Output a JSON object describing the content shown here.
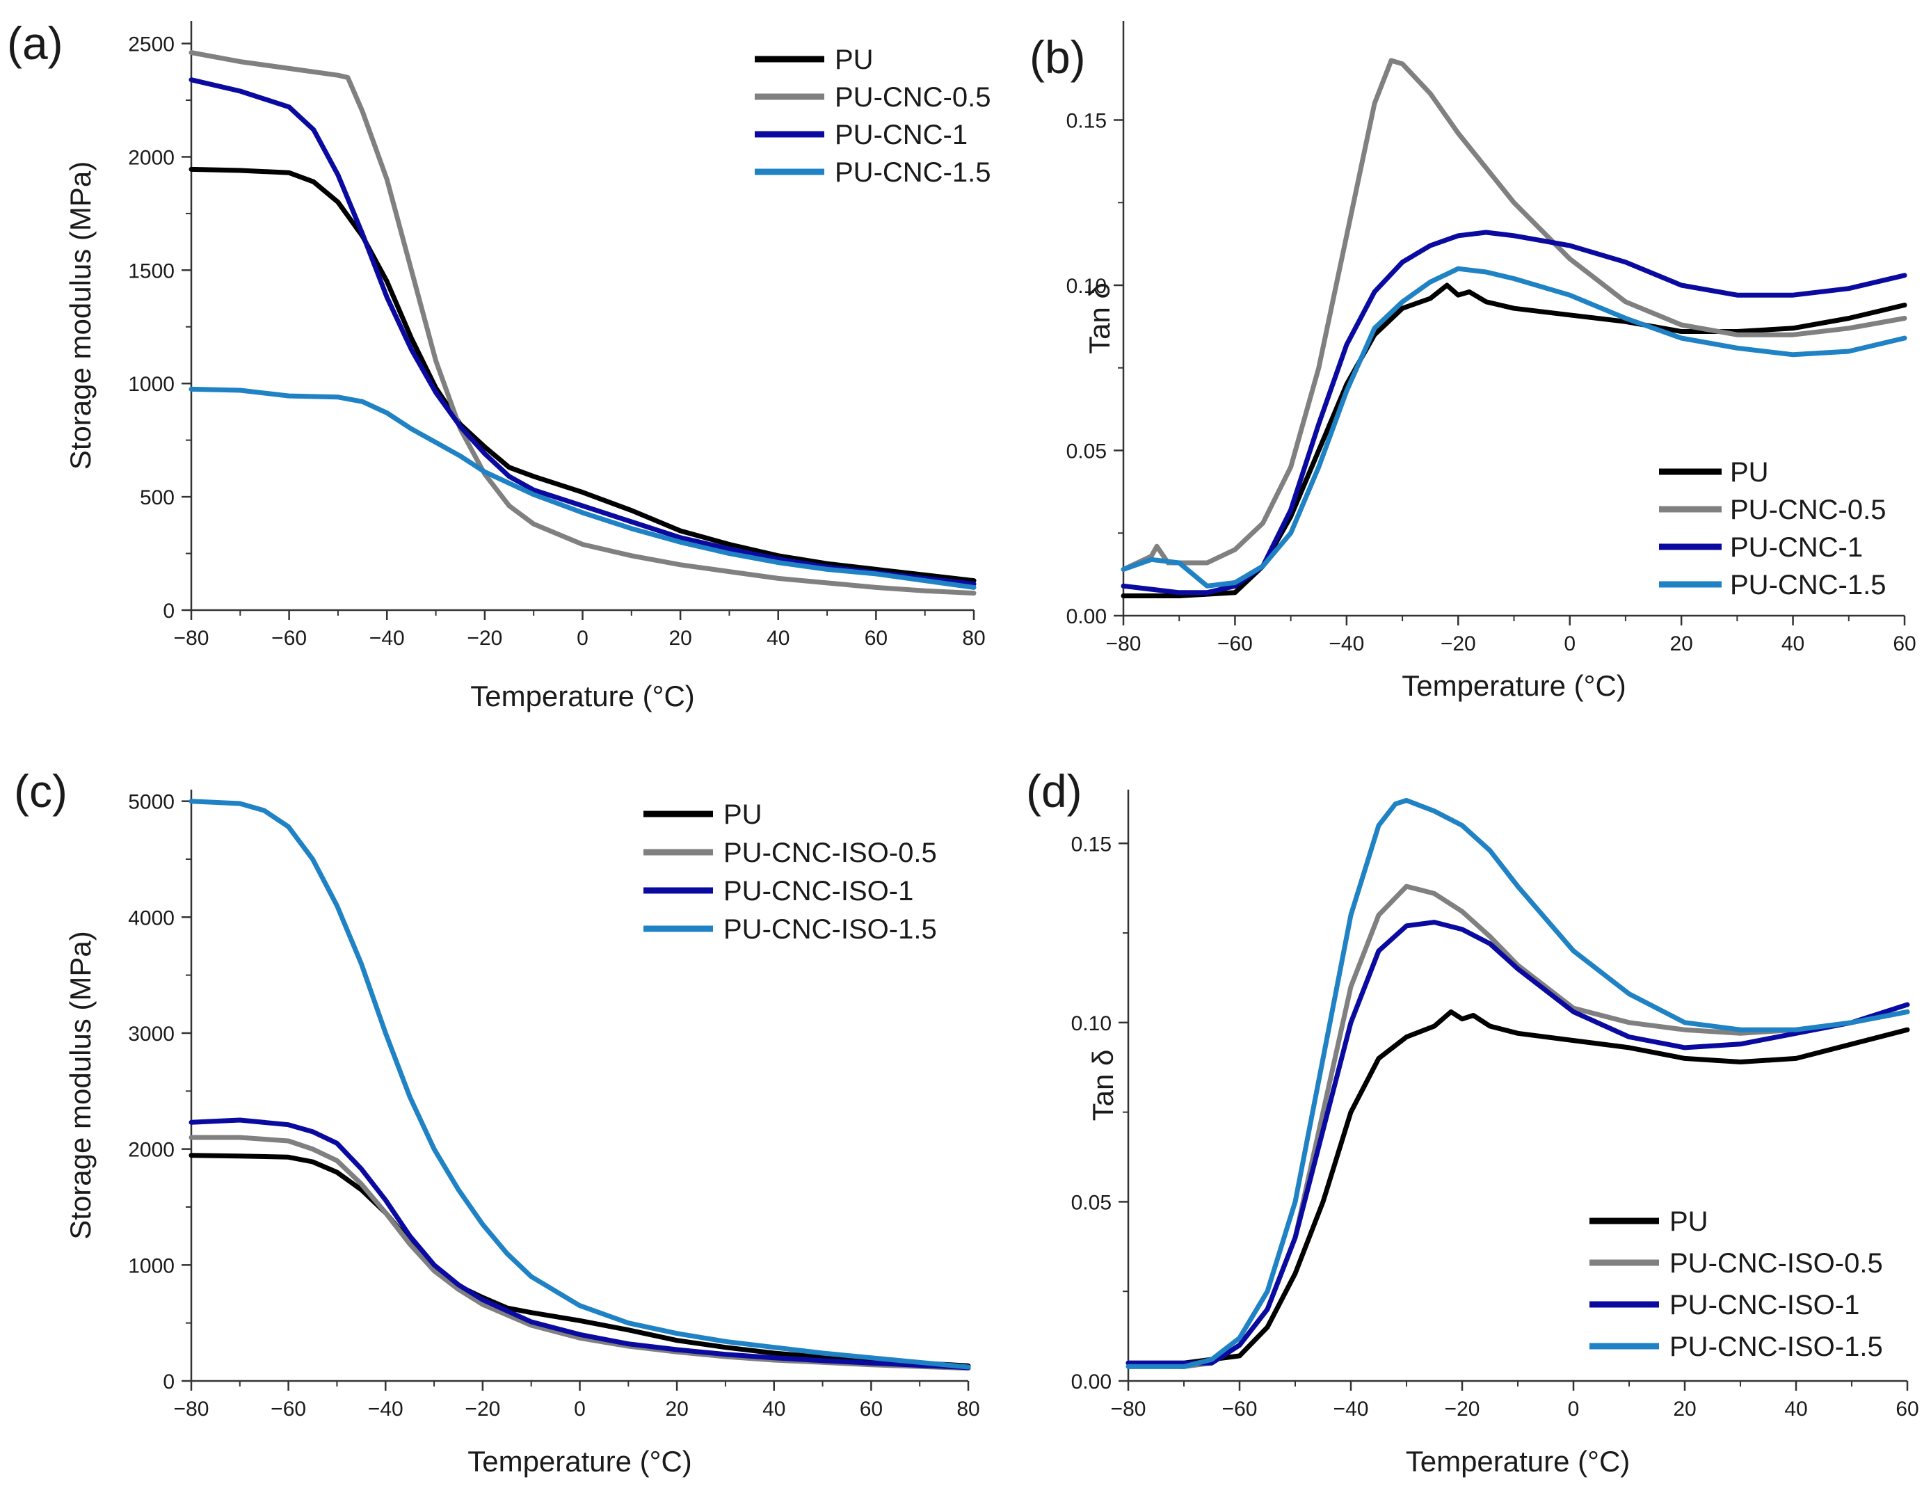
{
  "figure": {
    "colors": {
      "PU": "#000000",
      "CNC05": "#808080",
      "CNC1": "#0a0aa0",
      "CNC15": "#1f82c4",
      "axis": "#333333"
    }
  },
  "chart_data": [
    {
      "id": "a",
      "panel_label": "(a)",
      "type": "line",
      "xlabel": "Temperature (°C)",
      "ylabel": "Storage modulus (MPa)",
      "xlim": [
        -80,
        80
      ],
      "ylim": [
        0,
        2600
      ],
      "xticks": [
        -80,
        -60,
        -40,
        -20,
        0,
        20,
        40,
        60,
        80
      ],
      "xtick_labels": [
        "−80",
        "−60",
        "−40",
        "−20",
        "0",
        "20",
        "40",
        "60",
        "80"
      ],
      "yticks": [
        0,
        500,
        1000,
        1500,
        2000,
        2500
      ],
      "ytick_labels": [
        "0",
        "500",
        "1000",
        "1500",
        "2000",
        "2500"
      ],
      "legend_position": "top-right",
      "series": [
        {
          "name": "PU",
          "color": "#000000",
          "x": [
            -80,
            -70,
            -60,
            -55,
            -50,
            -45,
            -40,
            -35,
            -30,
            -25,
            -20,
            -15,
            -10,
            0,
            10,
            20,
            30,
            40,
            50,
            60,
            70,
            80
          ],
          "y": [
            1945,
            1940,
            1930,
            1890,
            1800,
            1650,
            1450,
            1200,
            980,
            820,
            720,
            630,
            590,
            520,
            440,
            350,
            290,
            240,
            205,
            180,
            155,
            130
          ]
        },
        {
          "name": "PU-CNC-0.5",
          "color": "#808080",
          "x": [
            -80,
            -70,
            -60,
            -50,
            -48,
            -45,
            -40,
            -35,
            -30,
            -25,
            -20,
            -15,
            -10,
            0,
            10,
            20,
            30,
            40,
            50,
            60,
            70,
            80
          ],
          "y": [
            2460,
            2420,
            2390,
            2360,
            2350,
            2200,
            1900,
            1500,
            1100,
            800,
            600,
            460,
            380,
            290,
            240,
            200,
            170,
            140,
            120,
            100,
            85,
            75
          ]
        },
        {
          "name": "PU-CNC-1",
          "color": "#0a0aa0",
          "x": [
            -80,
            -70,
            -60,
            -55,
            -50,
            -45,
            -40,
            -35,
            -30,
            -25,
            -20,
            -15,
            -10,
            0,
            10,
            20,
            30,
            40,
            50,
            60,
            70,
            80
          ],
          "y": [
            2340,
            2290,
            2220,
            2120,
            1920,
            1660,
            1380,
            1150,
            960,
            810,
            690,
            590,
            530,
            460,
            390,
            320,
            270,
            225,
            190,
            165,
            140,
            115
          ]
        },
        {
          "name": "PU-CNC-1.5",
          "color": "#1f82c4",
          "x": [
            -80,
            -70,
            -60,
            -50,
            -45,
            -40,
            -35,
            -30,
            -25,
            -20,
            -15,
            -10,
            0,
            10,
            20,
            30,
            40,
            50,
            60,
            70,
            80
          ],
          "y": [
            975,
            970,
            945,
            940,
            920,
            870,
            800,
            740,
            680,
            610,
            560,
            510,
            430,
            360,
            300,
            250,
            210,
            180,
            160,
            130,
            100
          ]
        }
      ]
    },
    {
      "id": "b",
      "panel_label": "(b)",
      "type": "line",
      "xlabel": "Temperature (°C)",
      "ylabel": "Tan δ",
      "xlim": [
        -80,
        60
      ],
      "ylim": [
        0,
        0.18
      ],
      "xticks": [
        -80,
        -60,
        -40,
        -20,
        0,
        20,
        40,
        60
      ],
      "xtick_labels": [
        "−80",
        "−60",
        "−40",
        "−20",
        "0",
        "20",
        "40",
        "60"
      ],
      "yticks": [
        0,
        0.05,
        0.1,
        0.15
      ],
      "ytick_labels": [
        "0.00",
        "0.05",
        "0.10",
        "0.15"
      ],
      "legend_position": "bottom-right",
      "series": [
        {
          "name": "PU",
          "color": "#000000",
          "x": [
            -80,
            -70,
            -60,
            -55,
            -50,
            -45,
            -40,
            -35,
            -30,
            -25,
            -22,
            -20,
            -18,
            -15,
            -10,
            0,
            10,
            20,
            30,
            40,
            50,
            60
          ],
          "y": [
            0.006,
            0.006,
            0.007,
            0.015,
            0.03,
            0.05,
            0.07,
            0.085,
            0.093,
            0.096,
            0.1,
            0.097,
            0.098,
            0.095,
            0.093,
            0.091,
            0.089,
            0.086,
            0.086,
            0.087,
            0.09,
            0.094
          ]
        },
        {
          "name": "PU-CNC-0.5",
          "color": "#808080",
          "x": [
            -80,
            -75,
            -74,
            -72,
            -65,
            -60,
            -55,
            -50,
            -45,
            -40,
            -35,
            -32,
            -30,
            -25,
            -20,
            -10,
            0,
            10,
            20,
            30,
            40,
            50,
            60
          ],
          "y": [
            0.014,
            0.018,
            0.021,
            0.016,
            0.016,
            0.02,
            0.028,
            0.045,
            0.075,
            0.115,
            0.155,
            0.168,
            0.167,
            0.158,
            0.146,
            0.125,
            0.108,
            0.095,
            0.088,
            0.085,
            0.085,
            0.087,
            0.09
          ]
        },
        {
          "name": "PU-CNC-1",
          "color": "#0a0aa0",
          "x": [
            -80,
            -70,
            -65,
            -60,
            -55,
            -50,
            -45,
            -40,
            -35,
            -30,
            -25,
            -20,
            -15,
            -10,
            0,
            10,
            20,
            30,
            40,
            50,
            60
          ],
          "y": [
            0.009,
            0.007,
            0.007,
            0.009,
            0.015,
            0.032,
            0.058,
            0.082,
            0.098,
            0.107,
            0.112,
            0.115,
            0.116,
            0.115,
            0.112,
            0.107,
            0.1,
            0.097,
            0.097,
            0.099,
            0.103
          ]
        },
        {
          "name": "PU-CNC-1.5",
          "color": "#1f82c4",
          "x": [
            -80,
            -75,
            -70,
            -65,
            -60,
            -55,
            -50,
            -45,
            -40,
            -35,
            -30,
            -25,
            -20,
            -15,
            -10,
            0,
            10,
            20,
            30,
            40,
            50,
            60
          ],
          "y": [
            0.014,
            0.017,
            0.016,
            0.009,
            0.01,
            0.015,
            0.025,
            0.045,
            0.068,
            0.087,
            0.095,
            0.101,
            0.105,
            0.104,
            0.102,
            0.097,
            0.09,
            0.084,
            0.081,
            0.079,
            0.08,
            0.084
          ]
        }
      ]
    },
    {
      "id": "c",
      "panel_label": "(c)",
      "type": "line",
      "xlabel": "Temperature (°C)",
      "ylabel": "Storage modulus (MPa)",
      "xlim": [
        -80,
        80
      ],
      "ylim": [
        0,
        5100
      ],
      "xticks": [
        -80,
        -60,
        -40,
        -20,
        0,
        20,
        40,
        60,
        80
      ],
      "xtick_labels": [
        "−80",
        "−60",
        "−40",
        "−20",
        "0",
        "20",
        "40",
        "60",
        "80"
      ],
      "yticks": [
        0,
        1000,
        2000,
        3000,
        4000,
        5000
      ],
      "ytick_labels": [
        "0",
        "1000",
        "2000",
        "3000",
        "4000",
        "5000"
      ],
      "legend_position": "top-right",
      "series": [
        {
          "name": "PU",
          "color": "#000000",
          "x": [
            -80,
            -70,
            -60,
            -55,
            -50,
            -45,
            -40,
            -35,
            -30,
            -25,
            -20,
            -15,
            -10,
            0,
            10,
            20,
            30,
            40,
            50,
            60,
            70,
            80
          ],
          "y": [
            1945,
            1940,
            1930,
            1890,
            1800,
            1650,
            1450,
            1200,
            980,
            820,
            720,
            630,
            590,
            520,
            440,
            350,
            290,
            240,
            205,
            180,
            155,
            130
          ]
        },
        {
          "name": "PU-CNC-ISO-0.5",
          "color": "#808080",
          "x": [
            -80,
            -70,
            -60,
            -55,
            -50,
            -45,
            -40,
            -35,
            -30,
            -25,
            -20,
            -10,
            0,
            10,
            20,
            30,
            40,
            50,
            60,
            70,
            80
          ],
          "y": [
            2100,
            2100,
            2070,
            2000,
            1900,
            1700,
            1450,
            1180,
            950,
            790,
            660,
            480,
            370,
            300,
            250,
            210,
            180,
            160,
            140,
            125,
            110
          ]
        },
        {
          "name": "PU-CNC-ISO-1",
          "color": "#0a0aa0",
          "x": [
            -80,
            -70,
            -60,
            -55,
            -50,
            -45,
            -40,
            -35,
            -30,
            -25,
            -20,
            -10,
            0,
            10,
            20,
            30,
            40,
            50,
            60,
            70,
            80
          ],
          "y": [
            2230,
            2250,
            2210,
            2150,
            2050,
            1830,
            1560,
            1250,
            1000,
            830,
            700,
            510,
            400,
            320,
            270,
            230,
            200,
            175,
            155,
            135,
            115
          ]
        },
        {
          "name": "PU-CNC-ISO-1.5",
          "color": "#1f82c4",
          "x": [
            -80,
            -70,
            -65,
            -60,
            -55,
            -50,
            -45,
            -40,
            -35,
            -30,
            -25,
            -20,
            -15,
            -10,
            0,
            10,
            20,
            30,
            40,
            50,
            60,
            70,
            80
          ],
          "y": [
            5000,
            4980,
            4920,
            4780,
            4500,
            4100,
            3600,
            3000,
            2450,
            2000,
            1650,
            1350,
            1100,
            900,
            650,
            500,
            410,
            340,
            290,
            240,
            200,
            160,
            120
          ]
        }
      ]
    },
    {
      "id": "d",
      "panel_label": "(d)",
      "type": "line",
      "xlabel": "Temperature (°C)",
      "ylabel": "Tan δ",
      "xlim": [
        -80,
        60
      ],
      "ylim": [
        0,
        0.165
      ],
      "xticks": [
        -80,
        -60,
        -40,
        -20,
        0,
        20,
        40,
        60
      ],
      "xtick_labels": [
        "−80",
        "−60",
        "−40",
        "−20",
        "0",
        "20",
        "40",
        "60"
      ],
      "yticks": [
        0,
        0.05,
        0.1,
        0.15
      ],
      "ytick_labels": [
        "0.00",
        "0.05",
        "0.10",
        "0.15"
      ],
      "legend_position": "bottom-right",
      "series": [
        {
          "name": "PU",
          "color": "#000000",
          "x": [
            -80,
            -70,
            -60,
            -55,
            -50,
            -45,
            -40,
            -35,
            -30,
            -25,
            -22,
            -20,
            -18,
            -15,
            -10,
            0,
            10,
            20,
            30,
            40,
            50,
            60
          ],
          "y": [
            0.005,
            0.005,
            0.007,
            0.015,
            0.03,
            0.05,
            0.075,
            0.09,
            0.096,
            0.099,
            0.103,
            0.101,
            0.102,
            0.099,
            0.097,
            0.095,
            0.093,
            0.09,
            0.089,
            0.09,
            0.094,
            0.098
          ]
        },
        {
          "name": "PU-CNC-ISO-0.5",
          "color": "#808080",
          "x": [
            -80,
            -70,
            -65,
            -60,
            -55,
            -50,
            -45,
            -40,
            -35,
            -30,
            -25,
            -20,
            -15,
            -10,
            0,
            10,
            20,
            30,
            40,
            50,
            60
          ],
          "y": [
            0.005,
            0.004,
            0.005,
            0.01,
            0.02,
            0.04,
            0.075,
            0.11,
            0.13,
            0.138,
            0.136,
            0.131,
            0.124,
            0.116,
            0.104,
            0.1,
            0.098,
            0.097,
            0.098,
            0.1,
            0.103
          ]
        },
        {
          "name": "PU-CNC-ISO-1",
          "color": "#0a0aa0",
          "x": [
            -80,
            -70,
            -65,
            -60,
            -55,
            -50,
            -45,
            -40,
            -35,
            -30,
            -25,
            -20,
            -15,
            -10,
            0,
            10,
            20,
            30,
            40,
            50,
            60
          ],
          "y": [
            0.005,
            0.005,
            0.005,
            0.01,
            0.02,
            0.04,
            0.07,
            0.1,
            0.12,
            0.127,
            0.128,
            0.126,
            0.122,
            0.115,
            0.103,
            0.096,
            0.093,
            0.094,
            0.097,
            0.1,
            0.105
          ]
        },
        {
          "name": "PU-CNC-ISO-1.5",
          "color": "#1f82c4",
          "x": [
            -80,
            -70,
            -65,
            -60,
            -55,
            -50,
            -45,
            -40,
            -35,
            -32,
            -30,
            -25,
            -20,
            -15,
            -10,
            0,
            10,
            20,
            30,
            40,
            50,
            60
          ],
          "y": [
            0.004,
            0.004,
            0.006,
            0.012,
            0.025,
            0.05,
            0.09,
            0.13,
            0.155,
            0.161,
            0.162,
            0.159,
            0.155,
            0.148,
            0.138,
            0.12,
            0.108,
            0.1,
            0.098,
            0.098,
            0.1,
            0.103
          ]
        }
      ]
    }
  ]
}
